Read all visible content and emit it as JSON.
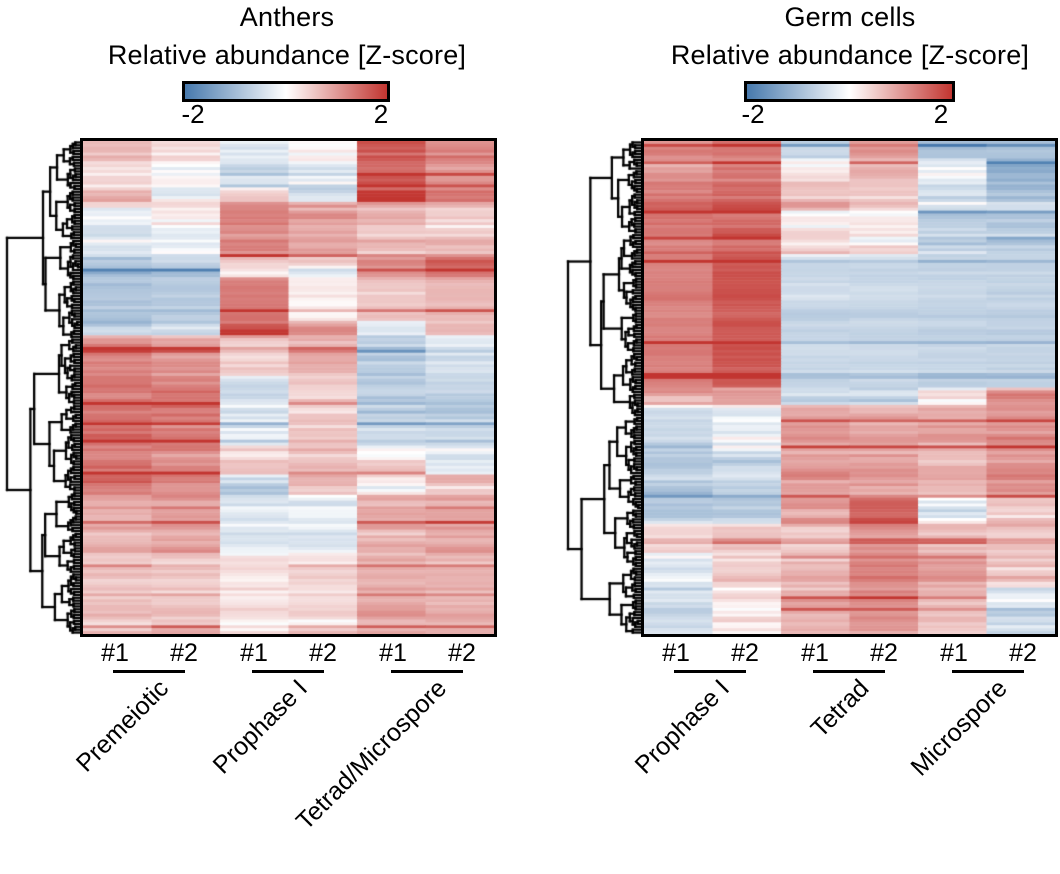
{
  "figure": {
    "background": "#ffffff",
    "text_color": "#000000",
    "line_color": "#000000"
  },
  "chart_data": [
    {
      "type": "heatmap",
      "panel": "left",
      "title": "Anthers",
      "colorbar": {
        "label": "Relative abundance [Z-score]",
        "min": -2,
        "max": 2,
        "min_label": "-2",
        "max_label": "2",
        "negative_color": "#4779ad",
        "mid_color": "#ffffff",
        "positive_color": "#c23530"
      },
      "groups": [
        {
          "label": "Premeiotic",
          "replicates": [
            "#1",
            "#2"
          ]
        },
        {
          "label": "Prophase I",
          "replicates": [
            "#1",
            "#2"
          ]
        },
        {
          "label": "Tetrad/Microspore",
          "replicates": [
            "#1",
            "#2"
          ]
        }
      ],
      "n_rows": 170,
      "row_dendrogram": {
        "root_split": 0.4,
        "seed": 11
      },
      "render_seed": 42,
      "row_segments": [
        {
          "fraction": 0.04,
          "values": [
            0.6,
            0.3,
            -0.3,
            0.1,
            1.5,
            1.1
          ],
          "noise": 0.45
        },
        {
          "fraction": 0.05,
          "values": [
            0.2,
            0.1,
            -0.4,
            -0.2,
            1.5,
            1.0
          ],
          "noise": 0.4
        },
        {
          "fraction": 0.03,
          "values": [
            0.7,
            -0.2,
            0.3,
            -0.5,
            1.8,
            1.2
          ],
          "noise": 0.55
        },
        {
          "fraction": 0.05,
          "values": [
            -0.1,
            0.1,
            1.1,
            0.8,
            0.5,
            0.3
          ],
          "noise": 0.45
        },
        {
          "fraction": 0.06,
          "values": [
            -0.4,
            -0.3,
            1.0,
            0.7,
            0.4,
            0.4
          ],
          "noise": 0.45
        },
        {
          "fraction": 0.04,
          "values": [
            -0.9,
            -0.7,
            0.3,
            0.1,
            1.0,
            1.4
          ],
          "noise": 0.55
        },
        {
          "fraction": 0.09,
          "values": [
            -0.7,
            -0.6,
            1.3,
            0.15,
            0.5,
            0.6
          ],
          "noise": 0.3
        },
        {
          "fraction": 0.03,
          "values": [
            -0.5,
            -0.5,
            1.6,
            0.9,
            -0.2,
            0.4
          ],
          "noise": 0.5
        },
        {
          "fraction": 0.08,
          "values": [
            1.1,
            0.9,
            0.3,
            0.6,
            -0.7,
            -0.4
          ],
          "noise": 0.4
        },
        {
          "fraction": 0.08,
          "values": [
            1.3,
            1.2,
            -0.3,
            0.4,
            -0.6,
            -0.6
          ],
          "noise": 0.45
        },
        {
          "fraction": 0.06,
          "values": [
            1.4,
            1.2,
            -0.2,
            0.5,
            -0.4,
            -0.5
          ],
          "noise": 0.5
        },
        {
          "fraction": 0.06,
          "values": [
            1.2,
            1.0,
            0.4,
            0.5,
            0.3,
            -0.2
          ],
          "noise": 0.55
        },
        {
          "fraction": 0.04,
          "values": [
            1.3,
            1.1,
            -0.6,
            0.6,
            0.1,
            0.5
          ],
          "noise": 0.5
        },
        {
          "fraction": 0.12,
          "values": [
            0.8,
            0.9,
            -0.3,
            -0.2,
            0.7,
            0.8
          ],
          "noise": 0.45
        },
        {
          "fraction": 0.12,
          "values": [
            0.45,
            0.4,
            0.2,
            0.3,
            0.7,
            0.6
          ],
          "noise": 0.3
        },
        {
          "fraction": 0.05,
          "values": [
            0.5,
            0.55,
            0.15,
            0.3,
            0.8,
            0.7
          ],
          "noise": 0.4
        }
      ]
    },
    {
      "type": "heatmap",
      "panel": "right",
      "title": "Germ cells",
      "colorbar": {
        "label": "Relative abundance [Z-score]",
        "min": -2,
        "max": 2,
        "min_label": "-2",
        "max_label": "2",
        "negative_color": "#4779ad",
        "mid_color": "#ffffff",
        "positive_color": "#c23530"
      },
      "groups": [
        {
          "label": "Prophase I",
          "replicates": [
            "#1",
            "#2"
          ]
        },
        {
          "label": "Tetrad",
          "replicates": [
            "#1",
            "#2"
          ]
        },
        {
          "label": "Microspore",
          "replicates": [
            "#1",
            "#2"
          ]
        }
      ],
      "n_rows": 170,
      "row_dendrogram": {
        "root_split": 0.56,
        "seed": 23
      },
      "render_seed": 77,
      "row_segments": [
        {
          "fraction": 0.035,
          "values": [
            1.2,
            1.3,
            -0.4,
            1.0,
            -0.7,
            -0.7
          ],
          "noise": 0.4
        },
        {
          "fraction": 0.045,
          "values": [
            0.9,
            1.2,
            0.15,
            0.7,
            -0.1,
            -1.0
          ],
          "noise": 0.4
        },
        {
          "fraction": 0.05,
          "values": [
            1.2,
            1.5,
            0.6,
            0.4,
            -0.3,
            -0.7
          ],
          "noise": 0.5
        },
        {
          "fraction": 0.04,
          "values": [
            1.3,
            1.4,
            0.1,
            0.15,
            -0.6,
            -0.6
          ],
          "noise": 0.45
        },
        {
          "fraction": 0.055,
          "values": [
            1.2,
            1.5,
            0.3,
            0.2,
            -0.5,
            -0.55
          ],
          "noise": 0.45
        },
        {
          "fraction": 0.27,
          "values": [
            1.15,
            1.6,
            -0.5,
            -0.5,
            -0.55,
            -0.55
          ],
          "noise": 0.22
        },
        {
          "fraction": 0.035,
          "values": [
            0.9,
            1.0,
            -0.4,
            -0.3,
            0.5,
            1.2
          ],
          "noise": 0.6
        },
        {
          "fraction": 0.1,
          "values": [
            -0.5,
            -0.2,
            0.8,
            0.7,
            0.7,
            0.9
          ],
          "noise": 0.4
        },
        {
          "fraction": 0.09,
          "values": [
            -0.7,
            -0.5,
            0.8,
            0.8,
            0.6,
            1.0
          ],
          "noise": 0.4
        },
        {
          "fraction": 0.05,
          "values": [
            -0.6,
            -0.5,
            0.9,
            1.6,
            -0.2,
            0.5
          ],
          "noise": 0.5
        },
        {
          "fraction": 0.06,
          "values": [
            0.4,
            0.5,
            0.5,
            0.9,
            0.6,
            0.5
          ],
          "noise": 0.4
        },
        {
          "fraction": 0.07,
          "values": [
            -0.3,
            0.3,
            0.6,
            1.1,
            0.9,
            0.4
          ],
          "noise": 0.5
        },
        {
          "fraction": 0.05,
          "values": [
            -0.4,
            0.2,
            0.8,
            1.0,
            0.6,
            -0.3
          ],
          "noise": 0.5
        },
        {
          "fraction": 0.05,
          "values": [
            -0.3,
            0.1,
            0.7,
            0.9,
            0.5,
            -0.4
          ],
          "noise": 0.45
        }
      ]
    }
  ]
}
